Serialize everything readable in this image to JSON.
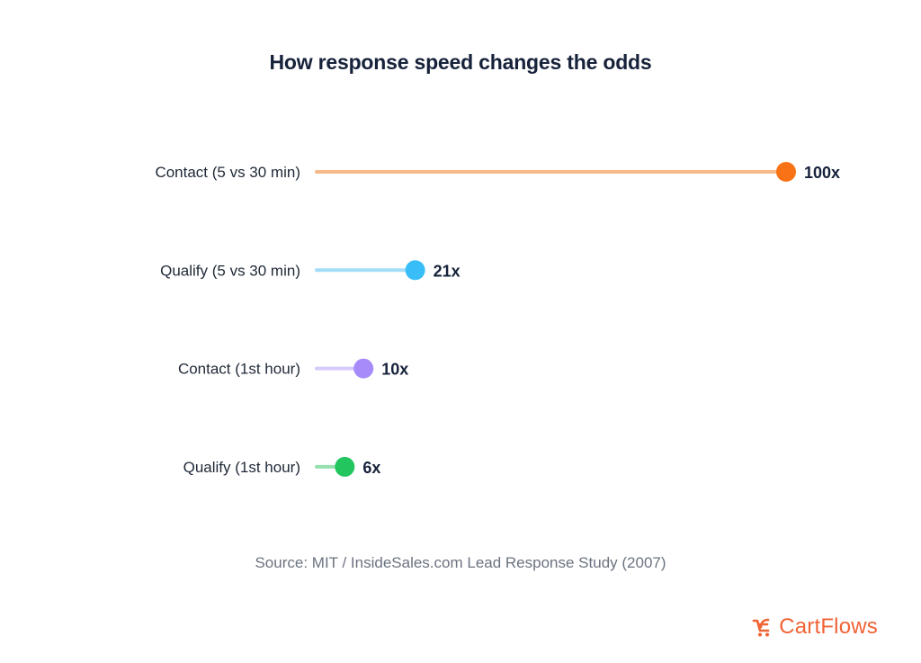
{
  "title": "How response speed changes the odds",
  "source": "Source: MIT / InsideSales.com Lead Response Study (2007)",
  "brand": {
    "name": "CartFlows",
    "icon": "cartflows-logo-icon",
    "color": "#f06335"
  },
  "chart_data": {
    "type": "lollipop",
    "orientation": "horizontal",
    "title": "How response speed changes the odds",
    "xlabel": "",
    "ylabel": "",
    "xlim": [
      0,
      100
    ],
    "grid": false,
    "legend": "none",
    "categories": [
      "Contact (5 vs 30 min)",
      "Qualify (5 vs 30 min)",
      "Contact (1st hour)",
      "Qualify (1st hour)"
    ],
    "values": [
      100,
      21,
      10,
      6
    ],
    "value_labels": [
      "100x",
      "21x",
      "10x",
      "6x"
    ],
    "colors": [
      {
        "dot": "#f97316",
        "stem": "#f6b98a"
      },
      {
        "dot": "#38bdf8",
        "stem": "#a5dcf8"
      },
      {
        "dot": "#a78bfa",
        "stem": "#d6cbfb"
      },
      {
        "dot": "#22c55e",
        "stem": "#95dfaf"
      }
    ]
  }
}
